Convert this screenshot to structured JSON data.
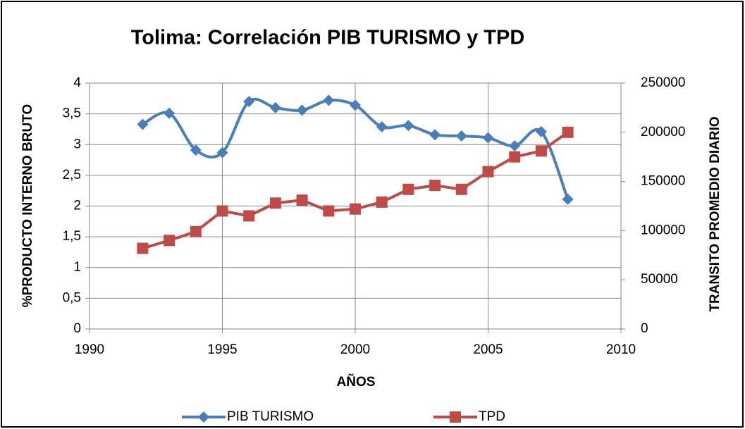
{
  "chart_data": {
    "type": "line",
    "title": "Tolima: Correlación PIB  TURISMO y TPD",
    "xlabel": "AÑOS",
    "ylabel": "%PRODUCTO INTERNO BRUTO",
    "y2label": "TRANSITO PROMEDIO DIARIO",
    "x": [
      1992,
      1993,
      1994,
      1995,
      1996,
      1997,
      1998,
      1999,
      2000,
      2001,
      2002,
      2003,
      2004,
      2005,
      2006,
      2007,
      2008
    ],
    "series": [
      {
        "name": "PIB TURISMO",
        "color": "#4a7ebb",
        "marker": "diamond",
        "smooth": true,
        "values": [
          3.33,
          3.51,
          2.91,
          2.87,
          3.7,
          3.6,
          3.56,
          3.72,
          3.64,
          3.29,
          3.31,
          3.16,
          3.14,
          3.11,
          2.98,
          3.21,
          2.11
        ]
      },
      {
        "name": "TPD",
        "color": "#be4b48",
        "marker": "square",
        "smooth": false,
        "axis": "y2",
        "values": [
          82000,
          90000,
          99000,
          120000,
          115000,
          128000,
          131000,
          120000,
          122000,
          129000,
          142000,
          146000,
          142000,
          160000,
          175000,
          181000,
          200000
        ]
      }
    ],
    "xlim": [
      1990,
      2010
    ],
    "xticks": [
      1990,
      1995,
      2000,
      2005,
      2010
    ],
    "ylim": [
      0,
      4
    ],
    "yticks": [
      0,
      {
        "value": 0.5,
        "label": "0,5"
      },
      1,
      {
        "value": 1.5,
        "label": "1,5"
      },
      2,
      {
        "value": 2.5,
        "label": "2,5"
      },
      3,
      {
        "value": 3.5,
        "label": "3,5"
      },
      4
    ],
    "y2lim": [
      0,
      250000
    ],
    "y2ticks": [
      0,
      50000,
      100000,
      150000,
      200000,
      250000
    ],
    "grid": true,
    "legend": "bottom"
  }
}
